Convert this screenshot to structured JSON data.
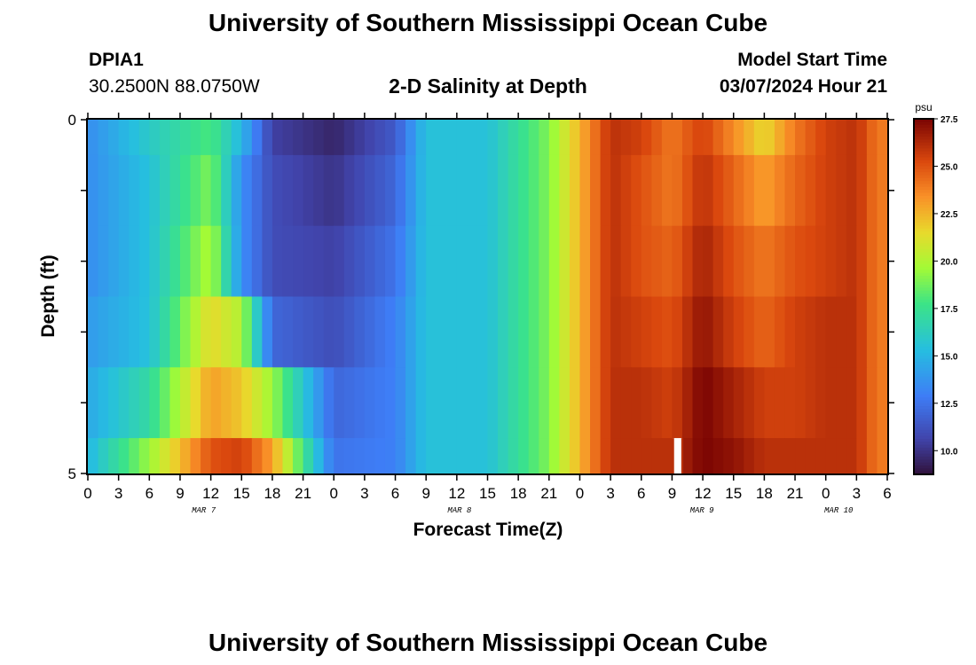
{
  "header": {
    "title": "University of Southern Mississippi Ocean Cube",
    "station": "DPIA1",
    "coords": "30.2500N  88.0750W",
    "subtitle": "2-D Salinity at Depth",
    "model_label": "Model Start Time",
    "model_time": "03/07/2024 Hour 21",
    "footer_title": "University of Southern Mississippi Ocean Cube"
  },
  "chart_data": {
    "type": "heatmap",
    "title": "2-D Salinity at Depth",
    "xlabel": "Forecast Time(Z)",
    "ylabel": "Depth (ft)",
    "ylim": [
      0,
      5
    ],
    "y_ticks": [
      "0",
      "5"
    ],
    "x_ticks": [
      "0",
      "3",
      "6",
      "9",
      "12",
      "15",
      "18",
      "21",
      "0",
      "3",
      "6",
      "9",
      "12",
      "15",
      "18",
      "21",
      "0",
      "3",
      "6",
      "9",
      "12",
      "15",
      "18",
      "21",
      "0",
      "3",
      "6"
    ],
    "day_labels": [
      "MAR 7",
      "MAR 8",
      "MAR 9",
      "MAR 10"
    ],
    "colorbar": {
      "unit": "psu",
      "range": [
        8.75,
        27.5
      ],
      "ticks": [
        "27.5",
        "25.0",
        "22.5",
        "20.0",
        "17.5",
        "15.0",
        "12.5",
        "10.0"
      ]
    },
    "depth_layers_ft": [
      "0-0.5",
      "0.5-1.5",
      "1.5-2.5",
      "2.5-3.5",
      "3.5-4.5",
      "4.5-5"
    ],
    "time_hours_step": 1,
    "time_hours_count": 78,
    "salinity_psu_keyframes": {
      "hours": [
        0,
        6,
        12,
        15,
        18,
        24,
        30,
        33,
        39,
        45,
        51,
        54,
        57,
        60,
        63,
        66,
        69,
        72,
        75,
        77
      ],
      "layers": [
        [
          13.5,
          16,
          18,
          15,
          10.5,
          9.5,
          11.5,
          15.5,
          15.5,
          19,
          26,
          25.5,
          24,
          25.5,
          23.5,
          21.5,
          24,
          25.5,
          26,
          24
        ],
        [
          13.5,
          15.5,
          19,
          13.5,
          11,
          10,
          12,
          15.5,
          15.5,
          19,
          26,
          25,
          24,
          26,
          24.5,
          23,
          24.5,
          25.5,
          26,
          24
        ],
        [
          13.5,
          15.5,
          20,
          13.5,
          11,
          10.5,
          12.5,
          15.5,
          15.5,
          19,
          26,
          25,
          24.5,
          26.5,
          25,
          24,
          25,
          25.5,
          26,
          24
        ],
        [
          14,
          15.5,
          21.5,
          20,
          12,
          11,
          13,
          15.5,
          15.5,
          19,
          26,
          25.5,
          25,
          27,
          25.5,
          24.5,
          25.5,
          26,
          26,
          24
        ],
        [
          14.5,
          17,
          23,
          22,
          19.5,
          12,
          13,
          15.5,
          15.5,
          19,
          26,
          26,
          25.5,
          27.5,
          26.5,
          25.5,
          25.5,
          26,
          26,
          24
        ],
        [
          15,
          19.5,
          25,
          25.5,
          23,
          12.5,
          13,
          15.5,
          15.5,
          19,
          26,
          26,
          26,
          27.5,
          27,
          26,
          26,
          26,
          26,
          24
        ]
      ]
    },
    "missing_cell": {
      "hour": 57,
      "layer": "4.5-5"
    }
  }
}
